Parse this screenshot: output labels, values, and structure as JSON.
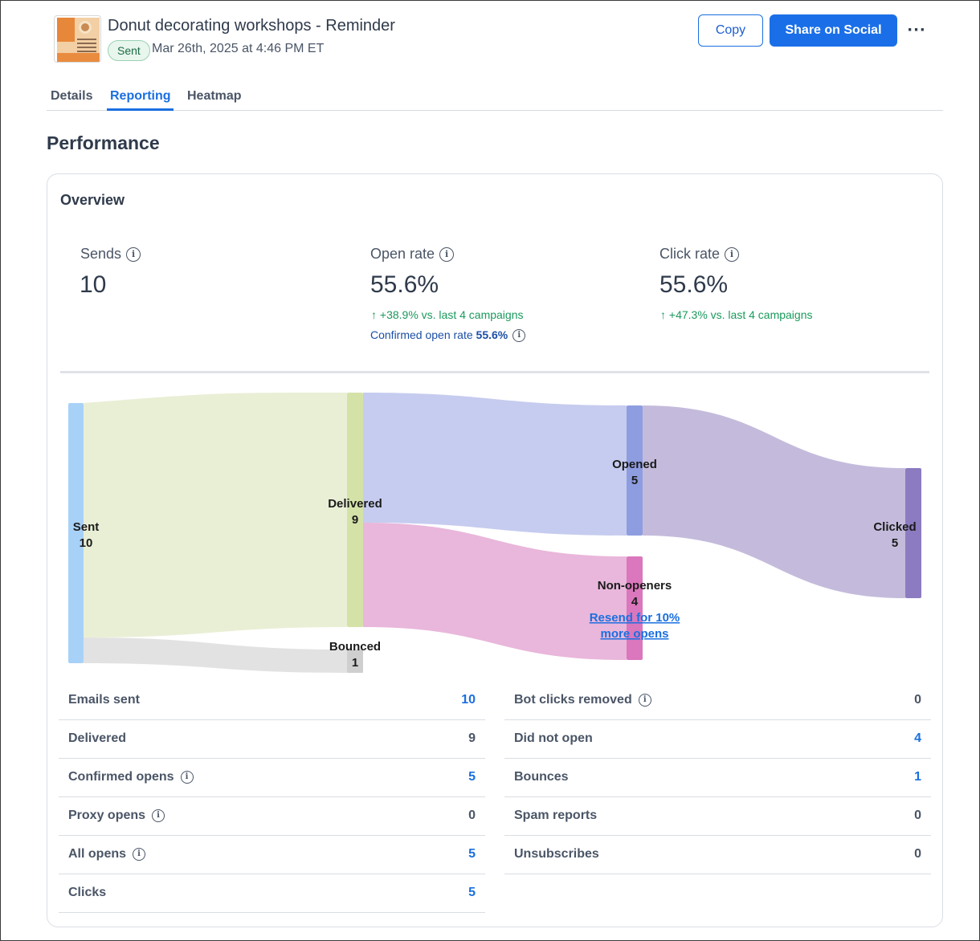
{
  "header": {
    "title": "Donut decorating workshops - Reminder",
    "status_badge": "Sent",
    "sent_date": "Mar 26th, 2025 at 4:46 PM ET",
    "copy_label": "Copy",
    "share_label": "Share on Social",
    "more_label": "···"
  },
  "tabs": [
    {
      "label": "Details",
      "active": false
    },
    {
      "label": "Reporting",
      "active": true
    },
    {
      "label": "Heatmap",
      "active": false
    }
  ],
  "section_title": "Performance",
  "overview": {
    "title": "Overview",
    "metrics": [
      {
        "label": "Sends",
        "value": "10",
        "trend": ""
      },
      {
        "label": "Open rate",
        "value": "55.6%",
        "trend": "+38.9% vs. last 4 campaigns"
      },
      {
        "label": "Click rate",
        "value": "55.6%",
        "trend": "+47.3% vs. last 4 campaigns"
      }
    ],
    "confirmed_label": "Confirmed open rate",
    "confirmed_value": "55.6%"
  },
  "funnel": {
    "nodes": [
      {
        "label": "Sent",
        "value": "10",
        "color": "#a8d1f8"
      },
      {
        "label": "Delivered",
        "value": "9",
        "color": "#d4e2a8"
      },
      {
        "label": "Bounced",
        "value": "1",
        "color": "#cfcfcf"
      },
      {
        "label": "Opened",
        "value": "5",
        "color": "#8e9de0"
      },
      {
        "label": "Non-openers",
        "value": "4",
        "color": "#db77bd"
      },
      {
        "label": "Clicked",
        "value": "5",
        "color": "#8c7bc0"
      }
    ],
    "links": [
      {
        "from": "Sent",
        "to": "Delivered",
        "value": 9,
        "color": "#e9efd5"
      },
      {
        "from": "Sent",
        "to": "Bounced",
        "value": 1,
        "color": "#e2e2e2"
      },
      {
        "from": "Delivered",
        "to": "Opened",
        "value": 5,
        "color": "#c6ccef"
      },
      {
        "from": "Delivered",
        "to": "Non-openers",
        "value": 4,
        "color": "#e9b7db"
      },
      {
        "from": "Opened",
        "to": "Clicked",
        "value": 5,
        "color": "#c4bbdc"
      }
    ],
    "resend_link_line1": "Resend for 10%",
    "resend_link_line2": "more opens"
  },
  "stats_left": [
    {
      "label": "Emails sent",
      "value": "10",
      "info": false,
      "link": true
    },
    {
      "label": "Delivered",
      "value": "9",
      "info": false,
      "link": false
    },
    {
      "label": "Confirmed opens",
      "value": "5",
      "info": true,
      "link": true
    },
    {
      "label": "Proxy opens",
      "value": "0",
      "info": true,
      "link": false
    },
    {
      "label": "All opens",
      "value": "5",
      "info": true,
      "link": true
    },
    {
      "label": "Clicks",
      "value": "5",
      "info": false,
      "link": true
    }
  ],
  "stats_right": [
    {
      "label": "Bot clicks removed",
      "value": "0",
      "info": true,
      "link": false
    },
    {
      "label": "Did not open",
      "value": "4",
      "info": false,
      "link": true
    },
    {
      "label": "Bounces",
      "value": "1",
      "info": false,
      "link": true
    },
    {
      "label": "Spam reports",
      "value": "0",
      "info": false,
      "link": false
    },
    {
      "label": "Unsubscribes",
      "value": "0",
      "info": false,
      "link": false
    }
  ]
}
